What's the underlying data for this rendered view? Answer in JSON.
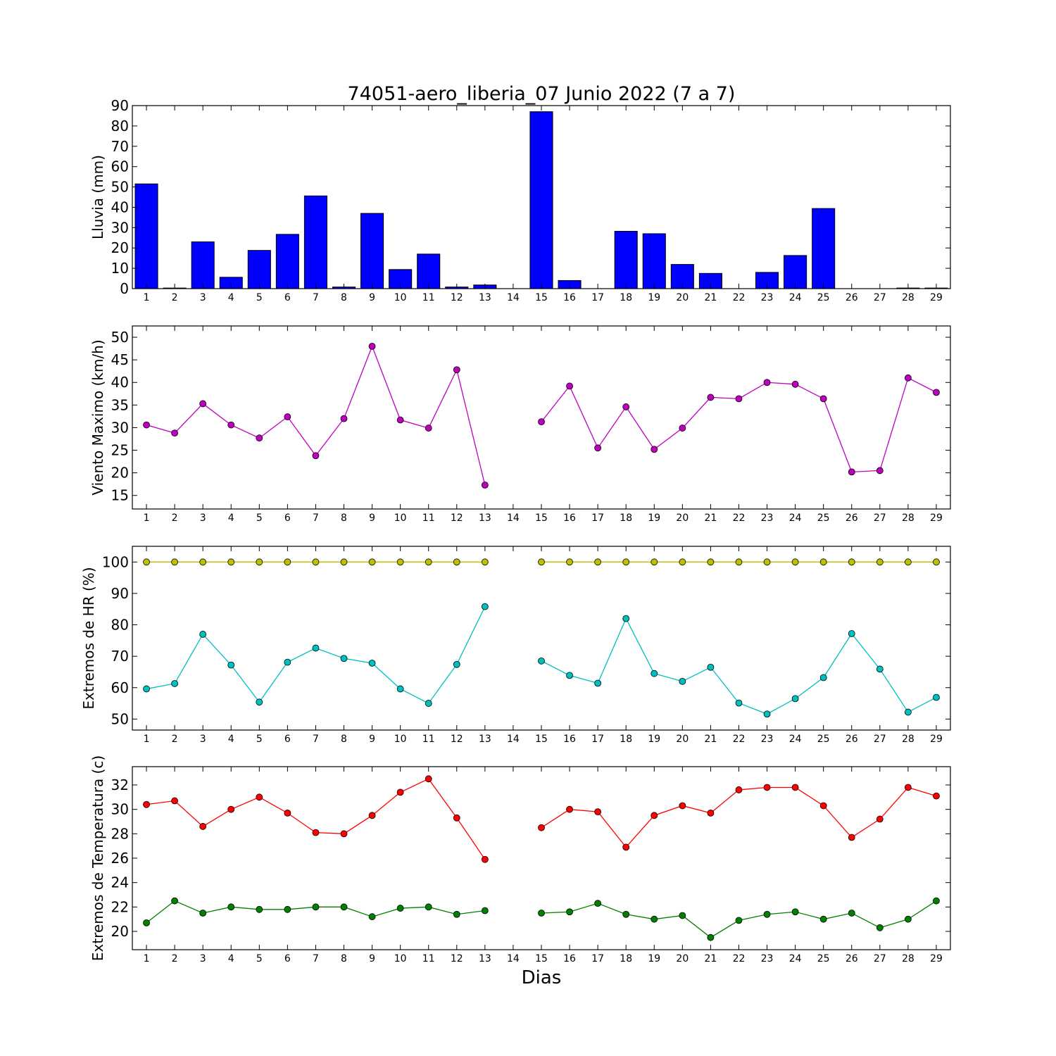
{
  "chart_data": [
    {
      "type": "bar",
      "title": "74051-aero_liberia_07 Junio 2022  (7 a 7)",
      "xlabel": "",
      "ylabel": "Lluvia (mm)",
      "categories": [
        "1",
        "2",
        "3",
        "4",
        "5",
        "6",
        "7",
        "8",
        "9",
        "10",
        "11",
        "12",
        "13",
        "14",
        "15",
        "16",
        "17",
        "18",
        "19",
        "20",
        "21",
        "22",
        "23",
        "24",
        "25",
        "26",
        "27",
        "28",
        "29"
      ],
      "values": [
        51.5,
        0.3,
        23.0,
        5.6,
        18.8,
        26.7,
        45.6,
        0.8,
        37.0,
        9.4,
        17.0,
        0.8,
        1.8,
        0,
        87.0,
        4.0,
        0,
        28.2,
        27.0,
        11.9,
        7.5,
        0,
        8.0,
        16.3,
        39.4,
        0,
        0,
        0.3,
        0.3
      ],
      "yticks": [
        0,
        10,
        20,
        30,
        40,
        50,
        60,
        70,
        80,
        90
      ],
      "ylim": [
        0,
        90
      ],
      "grid": false,
      "color": "#0000ff"
    },
    {
      "type": "line",
      "ylabel": "Viento Maximo (km/h)",
      "x": [
        1,
        2,
        3,
        4,
        5,
        6,
        7,
        8,
        9,
        10,
        11,
        12,
        13,
        14,
        15,
        16,
        17,
        18,
        19,
        20,
        21,
        22,
        23,
        24,
        25,
        26,
        27,
        28,
        29
      ],
      "series": [
        {
          "color": "#bf00bf",
          "values": [
            30.6,
            28.8,
            35.3,
            30.6,
            27.7,
            32.4,
            23.8,
            32.0,
            48.0,
            31.7,
            29.9,
            42.8,
            17.3,
            null,
            31.3,
            39.2,
            25.5,
            34.6,
            25.2,
            29.9,
            36.7,
            36.4,
            40.0,
            39.6,
            36.4,
            20.2,
            20.5,
            41.0,
            37.8
          ]
        }
      ],
      "yticks": [
        15,
        20,
        25,
        30,
        35,
        40,
        45,
        50
      ],
      "ylim": [
        12,
        52.5
      ],
      "grid": false
    },
    {
      "type": "line",
      "ylabel": "Extremos de HR (%)",
      "x": [
        1,
        2,
        3,
        4,
        5,
        6,
        7,
        8,
        9,
        10,
        11,
        12,
        13,
        14,
        15,
        16,
        17,
        18,
        19,
        20,
        21,
        22,
        23,
        24,
        25,
        26,
        27,
        28,
        29
      ],
      "series": [
        {
          "color": "#bfbf00",
          "values": [
            100,
            100,
            100,
            100,
            100,
            100,
            100,
            100,
            100,
            100,
            100,
            100,
            100,
            null,
            100,
            100,
            100,
            100,
            100,
            100,
            100,
            100,
            100,
            100,
            100,
            100,
            100,
            100,
            100
          ]
        },
        {
          "color": "#00bfbf",
          "values": [
            59.6,
            61.3,
            77.0,
            67.2,
            55.4,
            68.1,
            72.6,
            69.3,
            67.8,
            59.6,
            55.0,
            67.4,
            85.8,
            null,
            68.5,
            63.9,
            61.4,
            82.0,
            64.5,
            62.0,
            66.5,
            55.1,
            51.6,
            56.5,
            63.2,
            77.2,
            65.9,
            52.2,
            56.9
          ]
        }
      ],
      "yticks": [
        50,
        60,
        70,
        80,
        90,
        100
      ],
      "ylim": [
        46.5,
        105
      ],
      "grid": false
    },
    {
      "type": "line",
      "ylabel": "Extremos de Temperatura (c)",
      "xlabel": "Dias",
      "x": [
        1,
        2,
        3,
        4,
        5,
        6,
        7,
        8,
        9,
        10,
        11,
        12,
        13,
        14,
        15,
        16,
        17,
        18,
        19,
        20,
        21,
        22,
        23,
        24,
        25,
        26,
        27,
        28,
        29
      ],
      "series": [
        {
          "color": "#ff0000",
          "values": [
            30.4,
            30.7,
            28.6,
            30.0,
            31.0,
            29.7,
            28.1,
            28.0,
            29.5,
            31.4,
            32.5,
            29.3,
            25.9,
            null,
            28.5,
            30.0,
            29.8,
            26.9,
            29.5,
            30.3,
            29.7,
            31.6,
            31.8,
            31.8,
            30.3,
            27.7,
            29.2,
            31.8,
            31.1
          ]
        },
        {
          "color": "#008000",
          "values": [
            20.7,
            22.5,
            21.5,
            22.0,
            21.8,
            21.8,
            22.0,
            22.0,
            21.2,
            21.9,
            22.0,
            21.4,
            21.7,
            null,
            21.5,
            21.6,
            22.3,
            21.4,
            21.0,
            21.3,
            19.5,
            20.9,
            21.4,
            21.6,
            21.0,
            21.5,
            20.3,
            21.0,
            22.5
          ]
        }
      ],
      "yticks": [
        20,
        22,
        24,
        26,
        28,
        30,
        32
      ],
      "ylim": [
        18.5,
        33.5
      ],
      "grid": false
    }
  ]
}
